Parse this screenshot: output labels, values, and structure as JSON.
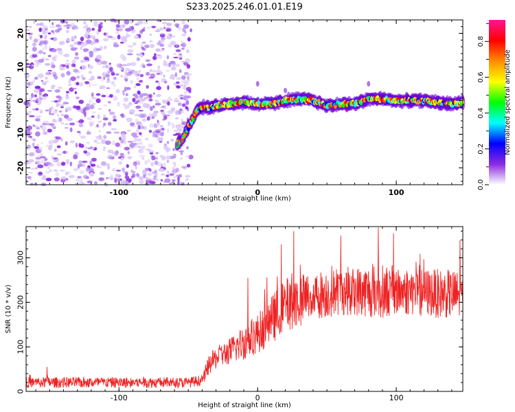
{
  "title": "S233.2025.246.01.01.E19",
  "chart_data": [
    {
      "type": "heatmap",
      "xlabel": "Height of straight line (km)",
      "ylabel": "Frequency (Hz)",
      "xlim": [
        -167,
        148
      ],
      "ylim": [
        -25,
        24
      ],
      "xticks": [
        -100,
        0,
        100
      ],
      "xtick_labels": [
        "-100",
        "0",
        "100"
      ],
      "yticks": [
        -20,
        -10,
        0,
        10,
        20
      ],
      "ytick_labels": [
        "-20",
        "-10",
        "0",
        "10",
        "20"
      ],
      "ridge_frequency": {
        "x": [
          -58,
          -55,
          -50,
          -46,
          -44,
          -40,
          -35,
          -30,
          -20,
          -10,
          0,
          10,
          20,
          30,
          40,
          50,
          60,
          70,
          80,
          90,
          100,
          110,
          120,
          130,
          140,
          148
        ],
        "y": [
          -13,
          -12,
          -8,
          -5,
          -3,
          -2,
          -2,
          -1.5,
          -1,
          -0.5,
          -1,
          -1,
          0,
          0.5,
          0,
          -1.5,
          -1,
          -1,
          0.5,
          0.5,
          0,
          0,
          0,
          -0.5,
          -1,
          -0.5
        ]
      },
      "noise_region_x": [
        -167,
        -48
      ],
      "colorbar": {
        "label": "Normalized spectral amplitude",
        "range": [
          0.0,
          0.92
        ],
        "ticks": [
          0.0,
          0.2,
          0.4,
          0.6,
          0.8
        ],
        "tick_labels": [
          "0.0",
          "0.2",
          "0.4",
          "0.6",
          "0.8"
        ],
        "colors": [
          "#ffffff",
          "#8a2be2",
          "#0000ff",
          "#00ffff",
          "#00ff00",
          "#ffff00",
          "#ff8c00",
          "#ff0000",
          "#ff1493"
        ]
      }
    },
    {
      "type": "line",
      "xlabel": "Height of straight line (km)",
      "ylabel": "SNR (10 * v/v)",
      "xlim": [
        -167,
        148
      ],
      "ylim": [
        0,
        370
      ],
      "xticks": [
        -100,
        0,
        100
      ],
      "xtick_labels": [
        "-100",
        "0",
        "100"
      ],
      "yticks": [
        0,
        100,
        200,
        300
      ],
      "ytick_labels": [
        "0",
        "100",
        "200",
        "300"
      ],
      "color": "#ee2222",
      "series": [
        {
          "name": "SNR",
          "envelope": {
            "x": [
              -167,
              -120,
              -80,
              -50,
              -40,
              -35,
              -30,
              -20,
              -10,
              0,
              10,
              20,
              30,
              40,
              50,
              60,
              70,
              80,
              90,
              100,
              110,
              120,
              130,
              140,
              148
            ],
            "mean": [
              20,
              20,
              20,
              20,
              25,
              60,
              75,
              90,
              110,
              130,
              160,
              195,
              205,
              215,
              220,
              225,
              225,
              225,
              225,
              225,
              225,
              222,
              220,
              218,
              215
            ],
            "spread": [
              12,
              12,
              12,
              12,
              12,
              22,
              25,
              30,
              40,
              45,
              55,
              60,
              60,
              55,
              55,
              55,
              55,
              60,
              60,
              55,
              55,
              55,
              55,
              55,
              55
            ]
          },
          "peaks": [
            [
              -152,
              55
            ],
            [
              -7,
              255
            ],
            [
              17,
              330
            ],
            [
              26,
              360
            ],
            [
              60,
              350
            ],
            [
              87,
              368
            ],
            [
              98,
              355
            ],
            [
              146,
              340
            ]
          ]
        }
      ]
    }
  ]
}
